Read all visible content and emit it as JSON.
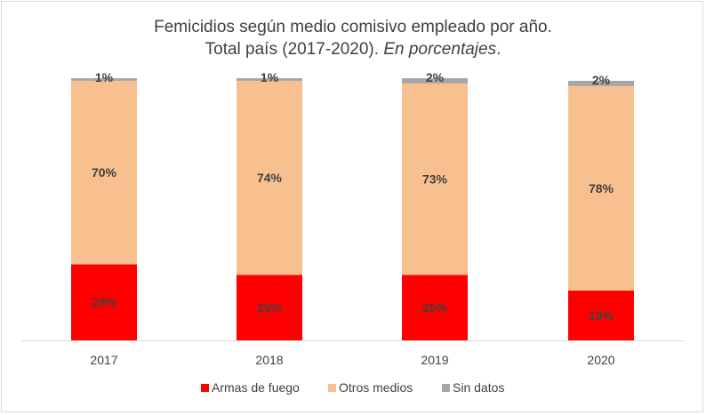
{
  "chart_data": {
    "type": "bar",
    "stacked": true,
    "title_line1": "Femicidios según medio comisivo empleado por año.",
    "title_line2_plain": "Total país (2017-2020). ",
    "title_line2_italic": "En porcentajes",
    "title_line2_end": ".",
    "categories": [
      "2017",
      "2018",
      "2019",
      "2020"
    ],
    "series": [
      {
        "name": "Armas de fuego",
        "color": "#ff0000",
        "values": [
          29,
          25,
          25,
          19
        ],
        "labels": [
          "29%",
          "25%",
          "25%",
          "19%"
        ]
      },
      {
        "name": "Otros medios",
        "color": "#f8c08f",
        "values": [
          70,
          74,
          73,
          78
        ],
        "labels": [
          "70%",
          "74%",
          "73%",
          "78%"
        ]
      },
      {
        "name": "Sin datos",
        "color": "#a6a6a6",
        "values": [
          1,
          1,
          2,
          2
        ],
        "labels": [
          "1%",
          "1%",
          "2%",
          "2%"
        ]
      }
    ],
    "ylim": [
      0,
      100
    ],
    "grid": false,
    "legend_position": "bottom"
  }
}
